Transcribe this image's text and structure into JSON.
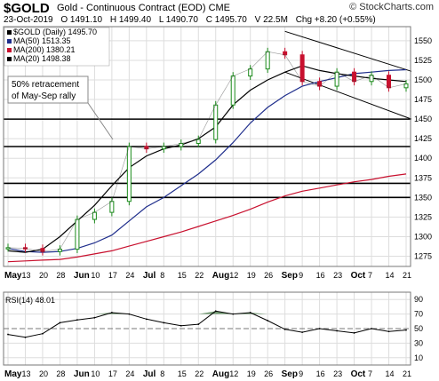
{
  "header": {
    "symbol": "$GOLD",
    "description": "Gold - Continuous Contract (EOD)",
    "exchange": "CME",
    "brand": "© StockCharts.com",
    "date": "23-Oct-2019",
    "open": "O 1491.10",
    "high": "H 1499.40",
    "low": "L 1490.70",
    "close": "C 1495.70",
    "volume": "V 22.5M",
    "change": "Chg +8.20 (+0.55%)"
  },
  "legend": [
    {
      "label": "$GOLD (Daily) 1495.70",
      "color": "#000000"
    },
    {
      "label": "MA(50) 1513.35",
      "color": "#1f2e8c"
    },
    {
      "label": "MA(200) 1380.21",
      "color": "#c8102e"
    },
    {
      "label": "MA(20) 1498.38",
      "color": "#000000"
    }
  ],
  "annotation": [
    "50% retracement",
    "of May-Sep rally"
  ],
  "price_axis": {
    "ticks": [
      "1550",
      "1525",
      "1500",
      "1475",
      "1450",
      "1425",
      "1400",
      "1375",
      "1350",
      "1325",
      "1300",
      "1275"
    ]
  },
  "date_axis": {
    "labels": [
      "May",
      "13",
      "20",
      "28",
      "Jun",
      "10",
      "17",
      "24",
      "Jul",
      "8",
      "15",
      "22",
      "Aug",
      "12",
      "19",
      "26",
      "Sep",
      "9",
      "16",
      "23",
      "Oct",
      "7",
      "14",
      "21"
    ]
  },
  "rsi": {
    "label": "RSI(14) 48.01",
    "ticks": [
      "90",
      "70",
      "50",
      "30",
      "10"
    ],
    "overbought": 70,
    "oversold": 30
  },
  "colors": {
    "up": "#1a8a1a",
    "down": "#c8102e",
    "ma50": "#1f2e8c",
    "ma200": "#c8102e",
    "ma20": "#000000",
    "rsi_fill": "#5a8a5a",
    "grid": "#dddddd"
  },
  "chart_data": {
    "type": "line",
    "title": "$GOLD (Daily) 1495.70",
    "ylim": [
      1262,
      1568
    ],
    "series": [
      {
        "name": "$GOLD (Daily) 1495.70",
        "x": [
          "May",
          "13",
          "20",
          "28",
          "Jun",
          "10",
          "17",
          "24",
          "Jul",
          "8",
          "15",
          "22",
          "Aug",
          "12",
          "19",
          "26",
          "Sep",
          "9",
          "16",
          "23",
          "Oct",
          "7",
          "14",
          "21"
        ],
        "values": [
          1286,
          1285,
          1281,
          1284,
          1322,
          1331,
          1345,
          1415,
          1412,
          1415,
          1419,
          1424,
          1468,
          1505,
          1514,
          1536,
          1532,
          1498,
          1492,
          1510,
          1498,
          1506,
          1490,
          1495
        ]
      },
      {
        "name": "MA(50) 1513.35",
        "x": [
          "May",
          "13",
          "20",
          "28",
          "Jun",
          "10",
          "17",
          "24",
          "Jul",
          "8",
          "15",
          "22",
          "Aug",
          "12",
          "19",
          "26",
          "Sep",
          "9",
          "16",
          "23",
          "Oct",
          "7",
          "14",
          "21"
        ],
        "values": [
          1285,
          1281,
          1280,
          1281,
          1285,
          1292,
          1302,
          1320,
          1338,
          1350,
          1365,
          1380,
          1398,
          1420,
          1445,
          1465,
          1480,
          1492,
          1498,
          1503,
          1508,
          1510,
          1512,
          1513
        ]
      },
      {
        "name": "MA(200) 1380.21",
        "x": [
          "May",
          "13",
          "20",
          "28",
          "Jun",
          "10",
          "17",
          "24",
          "Jul",
          "8",
          "15",
          "22",
          "Aug",
          "12",
          "19",
          "26",
          "Sep",
          "9",
          "16",
          "23",
          "Oct",
          "7",
          "14",
          "21"
        ],
        "values": [
          1268,
          1269,
          1270,
          1271,
          1274,
          1278,
          1282,
          1288,
          1294,
          1300,
          1306,
          1313,
          1320,
          1327,
          1335,
          1344,
          1352,
          1358,
          1362,
          1366,
          1370,
          1373,
          1377,
          1380
        ]
      },
      {
        "name": "MA(20) 1498.38",
        "x": [
          "May",
          "13",
          "20",
          "28",
          "Jun",
          "10",
          "17",
          "24",
          "Jul",
          "8",
          "15",
          "22",
          "Aug",
          "12",
          "19",
          "26",
          "Sep",
          "9",
          "16",
          "23",
          "Oct",
          "7",
          "14",
          "21"
        ],
        "values": [
          1282,
          1280,
          1284,
          1300,
          1320,
          1340,
          1365,
          1388,
          1403,
          1412,
          1417,
          1425,
          1440,
          1468,
          1487,
          1500,
          1510,
          1518,
          1512,
          1508,
          1505,
          1502,
          1500,
          1498
        ]
      },
      {
        "name": "RSI(14) 48.01",
        "x": [
          "May",
          "13",
          "20",
          "28",
          "Jun",
          "10",
          "17",
          "24",
          "Jul",
          "8",
          "15",
          "22",
          "Aug",
          "12",
          "19",
          "26",
          "Sep",
          "9",
          "16",
          "23",
          "Oct",
          "7",
          "14",
          "21"
        ],
        "values": [
          42,
          38,
          43,
          58,
          62,
          65,
          72,
          70,
          63,
          58,
          54,
          56,
          74,
          70,
          72,
          61,
          49,
          45,
          50,
          47,
          44,
          50,
          46,
          48
        ]
      }
    ],
    "hlines": [
      1450,
      1415,
      1368,
      1350
    ],
    "channel": {
      "upper": [
        [
          16,
          1562
        ],
        [
          23,
          1511
        ]
      ],
      "lower": [
        [
          16,
          1510
        ],
        [
          23,
          1450
        ]
      ]
    }
  }
}
